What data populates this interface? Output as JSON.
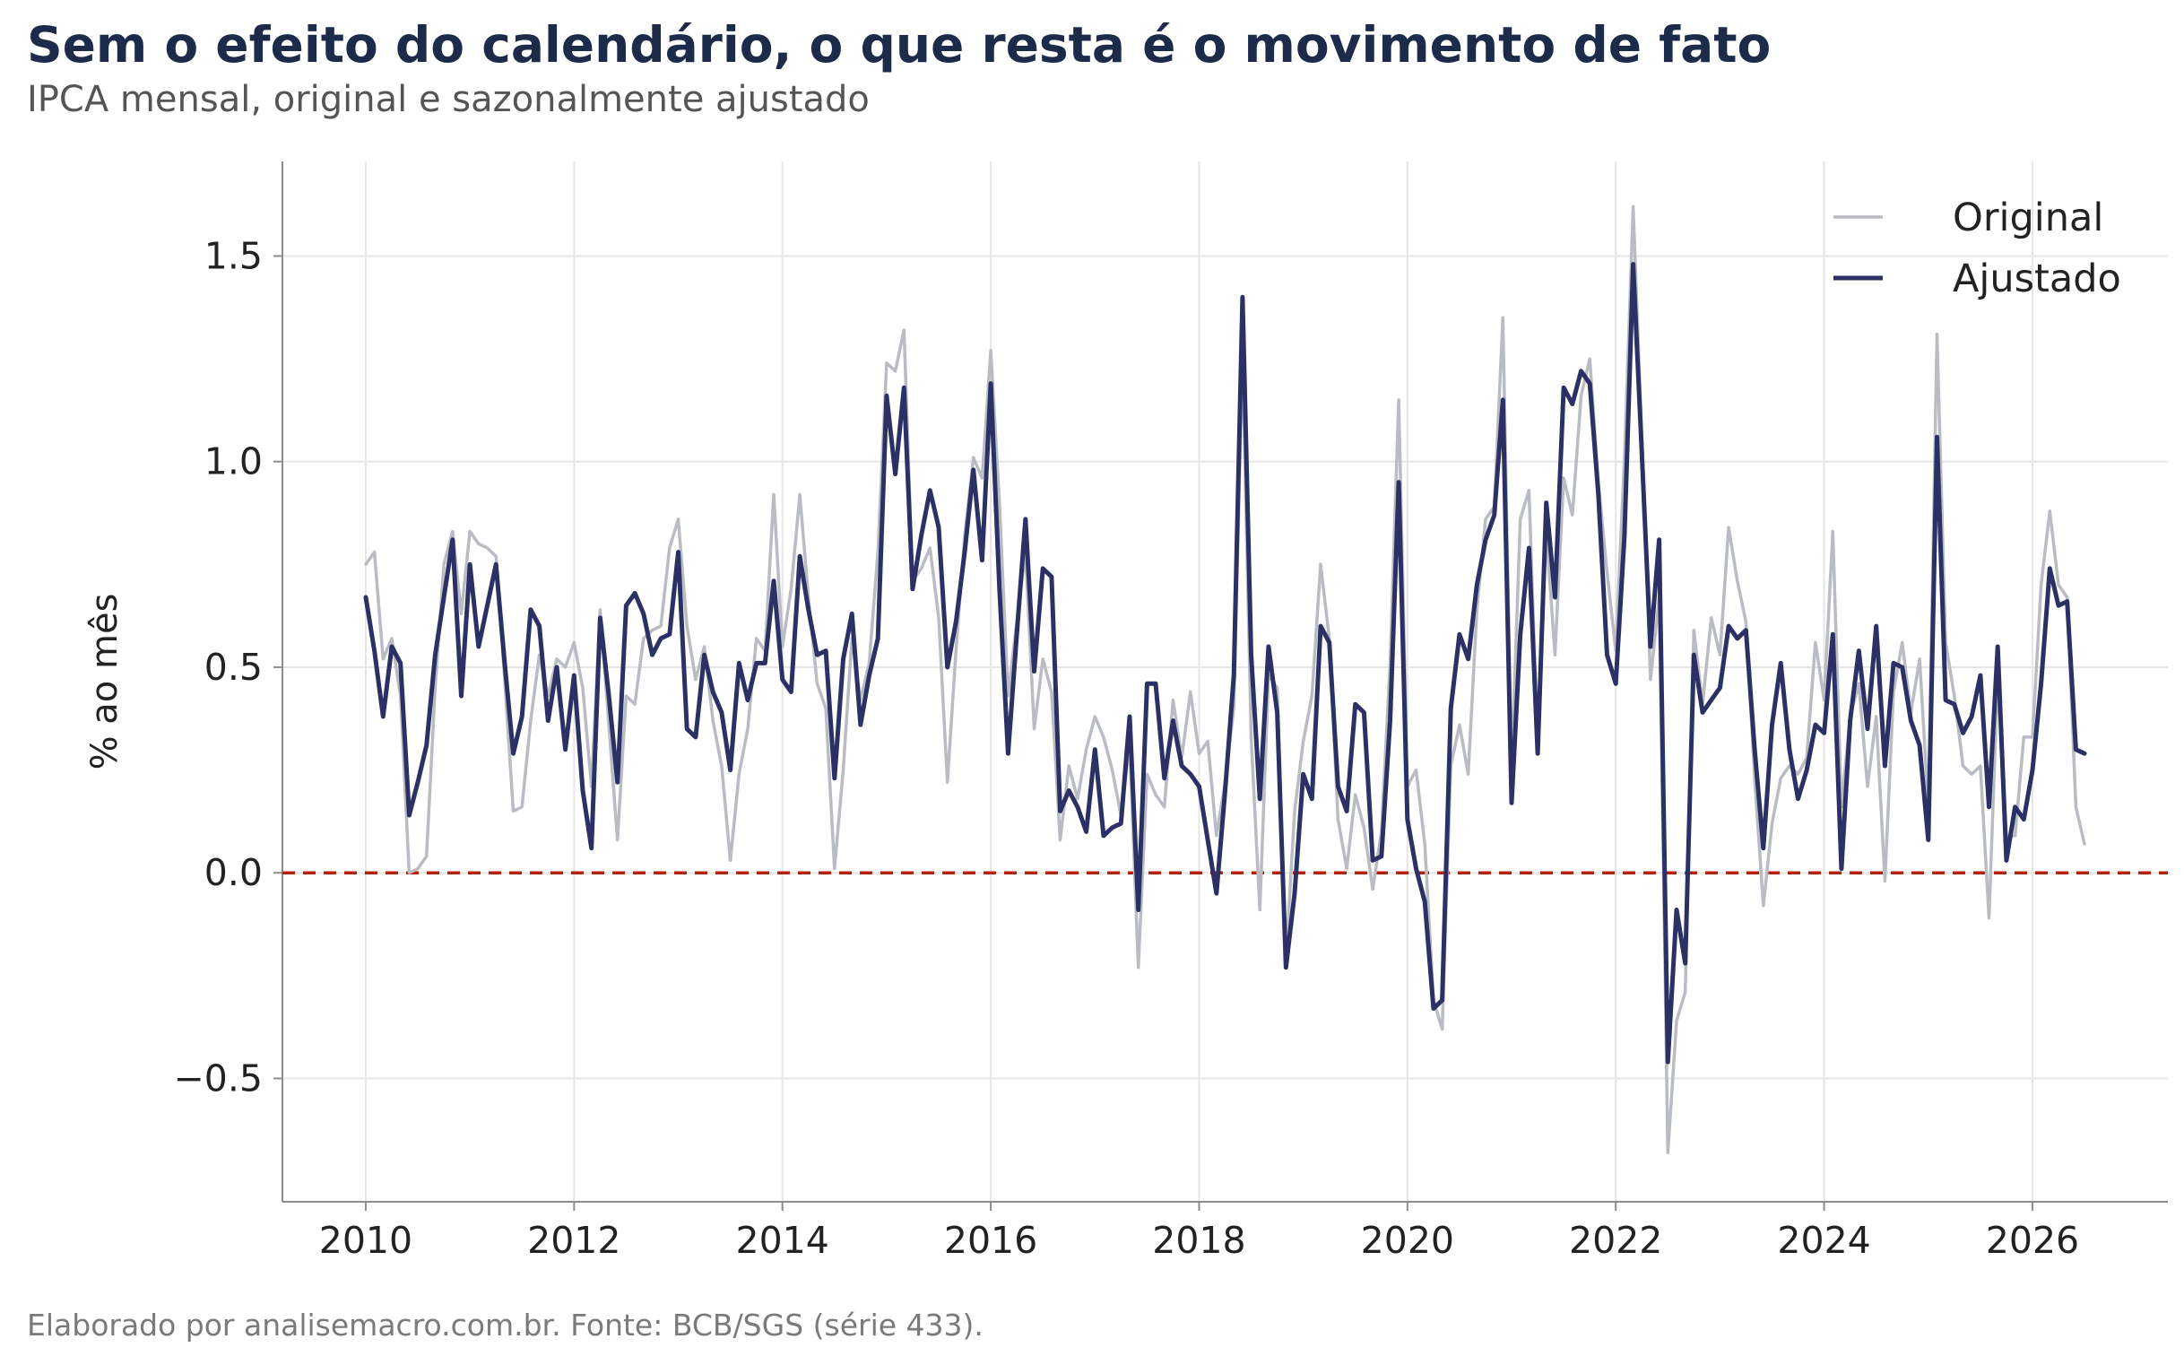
{
  "header": {
    "title": "Sem o efeito do calendário, o que resta é o movimento de fato",
    "subtitle": "IPCA mensal, original e sazonalmente ajustado"
  },
  "footer": {
    "source": "Elaborado por analisemacro.com.br. Fonte: BCB/SGS (série 433)."
  },
  "colors": {
    "original": "#b9bcc3",
    "ajustado": "#2b3165",
    "zero_line": "#b5200b",
    "grid": "#e6e6e6",
    "axis": "#8c8c8c"
  },
  "chart_data": {
    "type": "line",
    "title": "Sem o efeito do calendário, o que resta é o movimento de fato",
    "subtitle": "IPCA mensal, original e sazonalmente ajustado",
    "xlabel": "",
    "ylabel": "% ao mês",
    "x_start": "2010-01",
    "x_end": "2026-07",
    "x_frequency": "monthly",
    "xlim": [
      2009.2,
      2027.3
    ],
    "ylim": [
      -0.8,
      1.73
    ],
    "xticks": [
      2010,
      2012,
      2014,
      2016,
      2018,
      2020,
      2022,
      2024,
      2026
    ],
    "xtick_labels": [
      "2010",
      "2012",
      "2014",
      "2016",
      "2018",
      "2020",
      "2022",
      "2024",
      "2026"
    ],
    "yticks": [
      -0.5,
      0.0,
      0.5,
      1.0,
      1.5
    ],
    "ytick_labels": [
      "−0.5",
      "0.0",
      "0.5",
      "1.0",
      "1.5"
    ],
    "grid": true,
    "legend_position": "top-right",
    "reference_line": {
      "y": 0.0,
      "style": "dashed"
    },
    "series": [
      {
        "name": "Original",
        "values": [
          0.75,
          0.78,
          0.52,
          0.57,
          0.43,
          0.0,
          0.01,
          0.04,
          0.45,
          0.75,
          0.83,
          0.63,
          0.83,
          0.8,
          0.79,
          0.77,
          0.47,
          0.15,
          0.16,
          0.37,
          0.53,
          0.43,
          0.52,
          0.5,
          0.56,
          0.45,
          0.21,
          0.64,
          0.36,
          0.08,
          0.43,
          0.41,
          0.57,
          0.59,
          0.6,
          0.79,
          0.86,
          0.6,
          0.47,
          0.55,
          0.37,
          0.26,
          0.03,
          0.24,
          0.35,
          0.57,
          0.54,
          0.92,
          0.55,
          0.69,
          0.92,
          0.67,
          0.46,
          0.4,
          0.01,
          0.25,
          0.57,
          0.42,
          0.51,
          0.78,
          1.24,
          1.22,
          1.32,
          0.71,
          0.74,
          0.79,
          0.62,
          0.22,
          0.54,
          0.82,
          1.01,
          0.96,
          1.27,
          0.9,
          0.43,
          0.61,
          0.78,
          0.35,
          0.52,
          0.44,
          0.08,
          0.26,
          0.18,
          0.3,
          0.38,
          0.33,
          0.25,
          0.14,
          0.31,
          -0.23,
          0.24,
          0.19,
          0.16,
          0.42,
          0.28,
          0.44,
          0.29,
          0.32,
          0.09,
          0.22,
          0.4,
          1.26,
          0.33,
          -0.09,
          0.48,
          0.45,
          -0.21,
          0.15,
          0.32,
          0.43,
          0.75,
          0.57,
          0.13,
          0.01,
          0.19,
          0.11,
          -0.04,
          0.1,
          0.51,
          1.15,
          0.21,
          0.25,
          0.07,
          -0.31,
          -0.38,
          0.26,
          0.36,
          0.24,
          0.64,
          0.86,
          0.89,
          1.35,
          0.25,
          0.86,
          0.93,
          0.31,
          0.83,
          0.53,
          0.96,
          0.87,
          1.16,
          1.25,
          0.95,
          0.73,
          0.54,
          1.01,
          1.62,
          1.06,
          0.47,
          0.67,
          -0.68,
          -0.36,
          -0.29,
          0.59,
          0.41,
          0.62,
          0.53,
          0.84,
          0.71,
          0.61,
          0.23,
          -0.08,
          0.12,
          0.23,
          0.26,
          0.24,
          0.28,
          0.56,
          0.42,
          0.83,
          0.16,
          0.38,
          0.46,
          0.21,
          0.38,
          -0.02,
          0.44,
          0.56,
          0.39,
          0.52,
          0.16,
          1.31,
          0.56,
          0.43,
          0.26,
          0.24,
          0.26,
          -0.11,
          0.48,
          0.09,
          0.09,
          0.33,
          0.33,
          0.7,
          0.88,
          0.7,
          0.67,
          0.16,
          0.07
        ]
      },
      {
        "name": "Ajustado",
        "values": [
          0.67,
          0.54,
          0.38,
          0.55,
          0.51,
          0.14,
          0.22,
          0.31,
          0.53,
          0.67,
          0.81,
          0.43,
          0.75,
          0.55,
          0.65,
          0.75,
          0.51,
          0.29,
          0.38,
          0.64,
          0.6,
          0.37,
          0.5,
          0.3,
          0.48,
          0.2,
          0.06,
          0.62,
          0.43,
          0.22,
          0.65,
          0.68,
          0.63,
          0.53,
          0.57,
          0.58,
          0.78,
          0.35,
          0.33,
          0.53,
          0.44,
          0.39,
          0.25,
          0.51,
          0.42,
          0.51,
          0.51,
          0.71,
          0.47,
          0.44,
          0.77,
          0.64,
          0.53,
          0.54,
          0.23,
          0.52,
          0.63,
          0.36,
          0.48,
          0.57,
          1.16,
          0.97,
          1.18,
          0.69,
          0.82,
          0.93,
          0.84,
          0.5,
          0.61,
          0.78,
          0.98,
          0.76,
          1.19,
          0.69,
          0.29,
          0.58,
          0.86,
          0.49,
          0.74,
          0.72,
          0.15,
          0.2,
          0.16,
          0.1,
          0.3,
          0.09,
          0.11,
          0.12,
          0.38,
          -0.09,
          0.46,
          0.46,
          0.23,
          0.37,
          0.26,
          0.24,
          0.21,
          0.08,
          -0.05,
          0.2,
          0.48,
          1.4,
          0.53,
          0.18,
          0.55,
          0.39,
          -0.23,
          -0.05,
          0.24,
          0.18,
          0.6,
          0.56,
          0.21,
          0.15,
          0.41,
          0.39,
          0.03,
          0.04,
          0.37,
          0.95,
          0.13,
          0.01,
          -0.07,
          -0.33,
          -0.31,
          0.4,
          0.58,
          0.52,
          0.7,
          0.81,
          0.87,
          1.15,
          0.17,
          0.58,
          0.79,
          0.29,
          0.9,
          0.67,
          1.18,
          1.14,
          1.22,
          1.19,
          0.92,
          0.53,
          0.46,
          0.82,
          1.48,
          1.02,
          0.55,
          0.81,
          -0.46,
          -0.09,
          -0.22,
          0.53,
          0.39,
          0.42,
          0.45,
          0.6,
          0.57,
          0.59,
          0.3,
          0.06,
          0.36,
          0.51,
          0.3,
          0.18,
          0.25,
          0.36,
          0.34,
          0.58,
          0.01,
          0.37,
          0.54,
          0.35,
          0.6,
          0.26,
          0.51,
          0.5,
          0.37,
          0.31,
          0.08,
          1.06,
          0.42,
          0.41,
          0.34,
          0.38,
          0.48,
          0.16,
          0.55,
          0.03,
          0.16,
          0.13,
          0.25,
          0.46,
          0.74,
          0.65,
          0.66,
          0.3,
          0.29
        ]
      }
    ]
  }
}
